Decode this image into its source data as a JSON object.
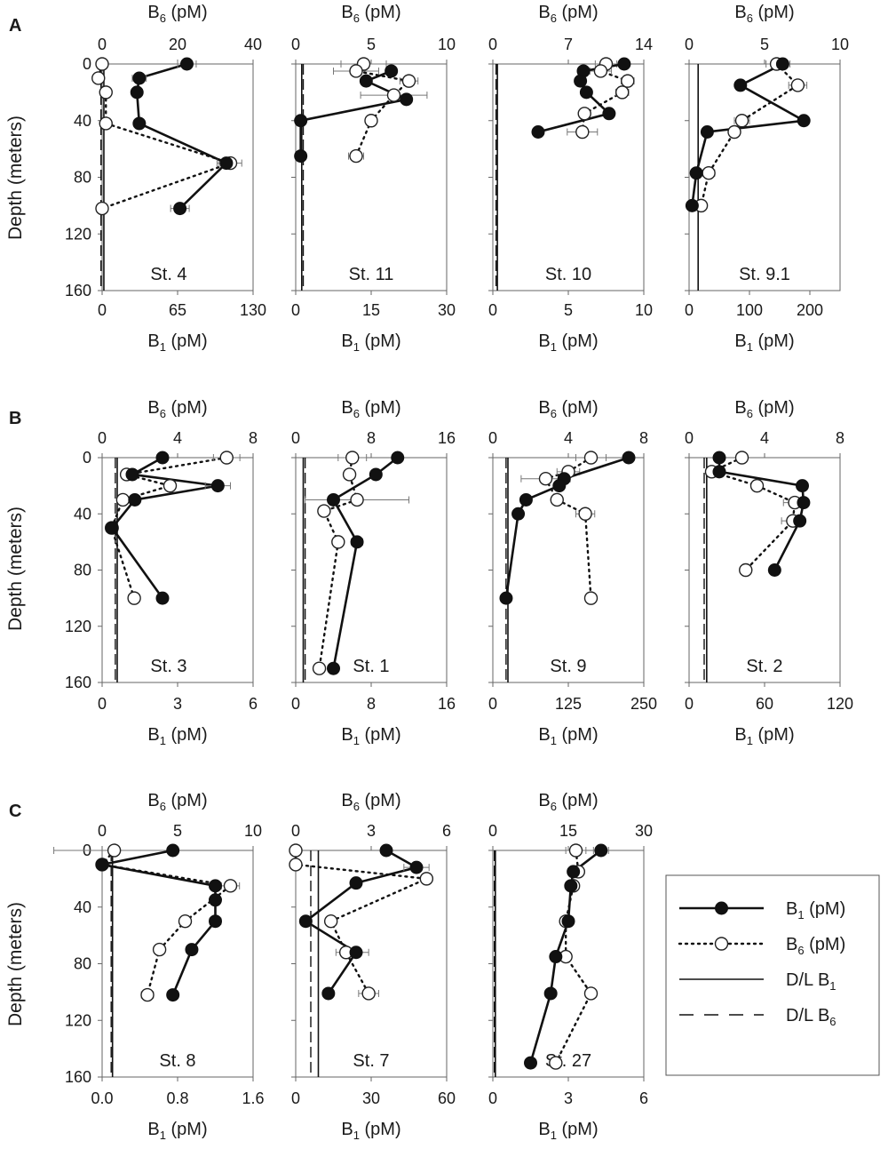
{
  "figure": {
    "y_axis_label": "Depth (meters)",
    "top_axis_label": "B",
    "top_axis_sub": "6",
    "bottom_axis_label": "B",
    "bottom_axis_sub": "1",
    "unit": "(pM)",
    "depth_ticks": [
      "0",
      "40",
      "80",
      "120",
      "160"
    ]
  },
  "legend": {
    "items": [
      {
        "label": "B",
        "sub": "1",
        "unit": " (pM)",
        "style": "solid-filled"
      },
      {
        "label": "B",
        "sub": "6",
        "unit": " (pM)",
        "style": "dotted-open"
      },
      {
        "label": "D/L B",
        "sub": "1",
        "unit": "",
        "style": "solid-line"
      },
      {
        "label": "D/L B",
        "sub": "6",
        "unit": "",
        "style": "dashed-line"
      }
    ]
  },
  "chart_data": [
    {
      "type": "line",
      "panel": "A",
      "title": "St. 4",
      "b6_ticks": [
        "0",
        "20",
        "40"
      ],
      "b6_range": [
        0,
        40
      ],
      "b1_ticks": [
        "0",
        "65",
        "130"
      ],
      "b1_range": [
        0,
        130
      ],
      "depth_range": [
        0,
        160
      ],
      "b1_depth": [
        0,
        10,
        20,
        42,
        70,
        102
      ],
      "b1_values": [
        73,
        32,
        30,
        32,
        107,
        67
      ],
      "b1_err": [
        8,
        6,
        4,
        3,
        8,
        8
      ],
      "b6_depth": [
        0,
        10,
        20,
        42,
        70,
        102
      ],
      "b6_values": [
        0,
        -1,
        1,
        1,
        34,
        0
      ],
      "b6_err": [
        0,
        0,
        0,
        0,
        3,
        0
      ],
      "dl_b1": 1.5,
      "dl_b6": -0.3
    },
    {
      "type": "line",
      "panel": "A",
      "title": "St. 11",
      "b6_ticks": [
        "0",
        "5",
        "10"
      ],
      "b6_range": [
        0,
        10
      ],
      "b1_ticks": [
        "0",
        "15",
        "30"
      ],
      "b1_range": [
        0,
        30
      ],
      "depth_range": [
        0,
        160
      ],
      "b1_depth": [
        5,
        12,
        25,
        40,
        65
      ],
      "b1_values": [
        19,
        14,
        22,
        1,
        1
      ],
      "b1_err": [
        0,
        0,
        0,
        0,
        0
      ],
      "b6_depth": [
        0,
        5,
        12,
        22,
        40,
        65
      ],
      "b6_values": [
        4.5,
        4.0,
        7.5,
        6.5,
        5.0,
        4.0
      ],
      "b6_err": [
        1.5,
        1.5,
        0.6,
        2.2,
        0,
        0.5
      ],
      "dl_b1": 1.2,
      "dl_b6": 0.5
    },
    {
      "type": "line",
      "panel": "A",
      "title": "St. 10",
      "b6_ticks": [
        "0",
        "7",
        "14"
      ],
      "b6_range": [
        0,
        14
      ],
      "b1_ticks": [
        "0",
        "5",
        "10"
      ],
      "b1_range": [
        0,
        10
      ],
      "depth_range": [
        0,
        160
      ],
      "b1_depth": [
        0,
        5,
        12,
        20,
        35,
        48
      ],
      "b1_values": [
        8.7,
        6,
        5.8,
        6.2,
        7.7,
        3
      ],
      "b1_err": [
        0,
        0,
        0,
        0,
        0,
        0
      ],
      "b6_depth": [
        0,
        5,
        12,
        20,
        35,
        48
      ],
      "b6_values": [
        10.5,
        10,
        12.5,
        12,
        8.5,
        8.3
      ],
      "b6_err": [
        1,
        1,
        0.6,
        0.6,
        0,
        1.4
      ],
      "dl_b1": 0.3,
      "dl_b6": 0.3
    },
    {
      "type": "line",
      "panel": "A",
      "title": "St. 9.1",
      "b6_ticks": [
        "0",
        "5",
        "10"
      ],
      "b6_range": [
        0,
        10
      ],
      "b1_ticks": [
        "0",
        "100",
        "200"
      ],
      "b1_range": [
        0,
        250
      ],
      "depth_range": [
        0,
        160
      ],
      "b1_depth": [
        0,
        15,
        40,
        48,
        77,
        100
      ],
      "b1_values": [
        155,
        85,
        190,
        30,
        12,
        5
      ],
      "b1_err": [
        12,
        5,
        5,
        5,
        0,
        0
      ],
      "b6_depth": [
        0,
        15,
        40,
        48,
        77,
        100
      ],
      "b6_values": [
        5.8,
        7.2,
        3.5,
        3.0,
        1.3,
        0.8
      ],
      "b6_err": [
        0.7,
        0.6,
        0.5,
        0,
        0.4,
        0
      ],
      "dl_b1": 15,
      "dl_b6": 0.6
    },
    {
      "type": "line",
      "panel": "B",
      "title": "St. 3",
      "b6_ticks": [
        "0",
        "4",
        "8"
      ],
      "b6_range": [
        0,
        8
      ],
      "b1_ticks": [
        "0",
        "3",
        "6"
      ],
      "b1_range": [
        0,
        6
      ],
      "depth_range": [
        0,
        160
      ],
      "b1_depth": [
        0,
        12,
        20,
        30,
        50,
        100
      ],
      "b1_values": [
        2.4,
        1.2,
        4.6,
        1.3,
        0.4,
        2.4
      ],
      "b1_err": [
        0,
        0,
        0.5,
        0,
        0,
        0
      ],
      "b6_depth": [
        0,
        12,
        20,
        30,
        50,
        100
      ],
      "b6_values": [
        6.6,
        1.3,
        3.6,
        1.1,
        0.5,
        1.7
      ],
      "b6_err": [
        0.7,
        0,
        0,
        0,
        0,
        0.3
      ],
      "dl_b1": 0.6,
      "dl_b6": 0.7
    },
    {
      "type": "line",
      "panel": "B",
      "title": "St. 1",
      "b6_ticks": [
        "0",
        "8",
        "16"
      ],
      "b6_range": [
        0,
        16
      ],
      "b1_ticks": [
        "0",
        "8",
        "16"
      ],
      "b1_range": [
        0,
        16
      ],
      "depth_range": [
        0,
        160
      ],
      "b1_depth": [
        0,
        12,
        30,
        60,
        150
      ],
      "b1_values": [
        10.8,
        8.5,
        4,
        6.5,
        4
      ],
      "b1_err": [
        0,
        0,
        0,
        0.6,
        0
      ],
      "b6_depth": [
        0,
        12,
        30,
        38,
        60,
        150
      ],
      "b6_values": [
        6,
        5.7,
        6.5,
        3,
        4.5,
        2.5
      ],
      "b6_err": [
        1.5,
        0.5,
        5.5,
        0,
        0,
        0
      ],
      "dl_b1": 0.8,
      "dl_b6": 1
    },
    {
      "type": "line",
      "panel": "B",
      "title": "St. 9",
      "b6_ticks": [
        "0",
        "4",
        "8"
      ],
      "b6_range": [
        0,
        8
      ],
      "b1_ticks": [
        "0",
        "125",
        "250"
      ],
      "b1_range": [
        0,
        250
      ],
      "depth_range": [
        0,
        160
      ],
      "b1_depth": [
        0,
        15,
        20,
        30,
        40,
        100
      ],
      "b1_values": [
        225,
        118,
        110,
        55,
        42,
        22
      ],
      "b1_err": [
        0,
        0,
        0,
        0,
        0,
        0
      ],
      "b6_depth": [
        0,
        10,
        15,
        30,
        40,
        100
      ],
      "b6_values": [
        5.2,
        4,
        2.8,
        3.4,
        4.9,
        5.2
      ],
      "b6_err": [
        0.8,
        0.6,
        1.3,
        0,
        0.5,
        0.2
      ],
      "dl_b1": 25,
      "dl_b6": 0.7
    },
    {
      "type": "line",
      "panel": "B",
      "title": "St. 2",
      "b6_ticks": [
        "0",
        "4",
        "8"
      ],
      "b6_range": [
        0,
        8
      ],
      "b1_ticks": [
        "0",
        "60",
        "120"
      ],
      "b1_range": [
        0,
        120
      ],
      "depth_range": [
        0,
        160
      ],
      "b1_depth": [
        0,
        10,
        20,
        32,
        45,
        80
      ],
      "b1_values": [
        24,
        24,
        90,
        91,
        88,
        68
      ],
      "b1_err": [
        0,
        0,
        3,
        0,
        0,
        0
      ],
      "b6_depth": [
        0,
        10,
        20,
        32,
        45,
        80
      ],
      "b6_values": [
        2.8,
        1.2,
        3.6,
        5.6,
        5.5,
        3.0
      ],
      "b6_err": [
        0,
        0,
        0,
        0.6,
        0.6,
        0
      ],
      "dl_b1": 14,
      "dl_b6": 0.8
    },
    {
      "type": "line",
      "panel": "C",
      "title": "St. 8",
      "b6_ticks": [
        "0",
        "5",
        "10"
      ],
      "b6_range": [
        0,
        10
      ],
      "b1_ticks": [
        "0.0",
        "0.8",
        "1.6"
      ],
      "b1_range": [
        0,
        1.6
      ],
      "depth_range": [
        0,
        160
      ],
      "b1_depth": [
        0,
        10,
        25,
        35,
        50,
        70,
        102
      ],
      "b1_values": [
        0.75,
        0,
        1.2,
        1.2,
        1.2,
        0.95,
        0.75
      ],
      "b1_err": [
        0,
        0,
        0,
        0,
        0.06,
        0,
        0
      ],
      "b6_depth": [
        0,
        10,
        25,
        50,
        70,
        102
      ],
      "b6_values": [
        0.8,
        0,
        8.5,
        5.5,
        3.8,
        3
      ],
      "b6_err": [
        4,
        0,
        0.6,
        0,
        0,
        0.4
      ],
      "dl_b1": 0.11,
      "dl_b6": 0.6
    },
    {
      "type": "line",
      "panel": "C",
      "title": "St. 7",
      "b6_ticks": [
        "0",
        "3",
        "6"
      ],
      "b6_range": [
        0,
        6
      ],
      "b1_ticks": [
        "0",
        "30",
        "60"
      ],
      "b1_range": [
        0,
        60
      ],
      "depth_range": [
        0,
        160
      ],
      "b1_depth": [
        0,
        12,
        23,
        50,
        72,
        101
      ],
      "b1_values": [
        36,
        48,
        24,
        4,
        24,
        13
      ],
      "b1_err": [
        0,
        5,
        0,
        0,
        5,
        0
      ],
      "b6_depth": [
        0,
        10,
        20,
        50,
        72,
        101
      ],
      "b6_values": [
        0,
        0,
        5.2,
        1.4,
        2.0,
        2.9
      ],
      "b6_err": [
        0,
        0,
        0,
        0,
        0.4,
        0.4
      ],
      "dl_b1": 9,
      "dl_b6": 0.6
    },
    {
      "type": "line",
      "panel": "C",
      "title": "St. 27",
      "b6_ticks": [
        "0",
        "15",
        "30"
      ],
      "b6_range": [
        0,
        30
      ],
      "b1_ticks": [
        "0",
        "3",
        "6"
      ],
      "b1_range": [
        0,
        6
      ],
      "depth_range": [
        0,
        160
      ],
      "b1_depth": [
        0,
        15,
        25,
        50,
        75,
        101,
        150
      ],
      "b1_values": [
        4.3,
        3.2,
        3.1,
        3.0,
        2.5,
        2.3,
        1.5
      ],
      "b1_err": [
        0.3,
        0,
        0,
        0,
        0,
        0,
        0
      ],
      "b6_depth": [
        0,
        15,
        25,
        50,
        75,
        101,
        150
      ],
      "b6_values": [
        16.5,
        17,
        16,
        14.5,
        14.5,
        19.5,
        12.5
      ],
      "b6_err": [
        2,
        0,
        0,
        0,
        0,
        0,
        0
      ],
      "dl_b1": 0.1,
      "dl_b6": 0.3
    }
  ]
}
